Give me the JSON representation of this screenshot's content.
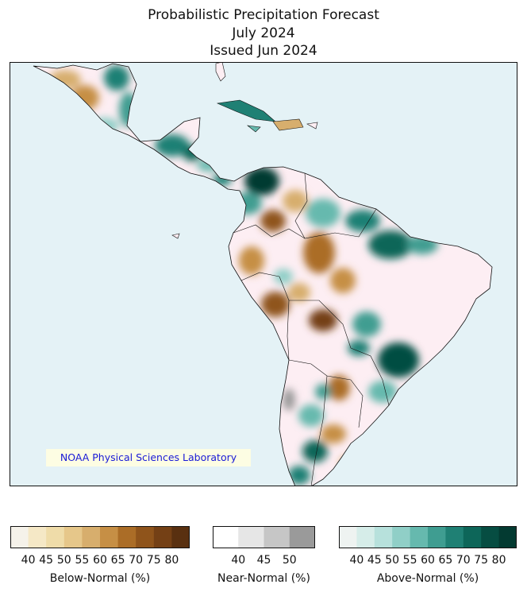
{
  "header": {
    "title": "Probabilistic Precipitation Forecast",
    "month": "July 2024",
    "issued": "Issued Jun 2024"
  },
  "credit": "NOAA Physical Sciences Laboratory",
  "colors": {
    "ocean": "#e4f2f6",
    "land_near_normal": "#fdeef3",
    "below": [
      "#f5f2ea",
      "#f5e8c6",
      "#efdca9",
      "#e6c78a",
      "#d7ae6d",
      "#c68f45",
      "#ab6d27",
      "#8f541b",
      "#744015",
      "#593010"
    ],
    "near": [
      "#ffffff",
      "#e6e6e6",
      "#c6c6c6",
      "#9a9a9a"
    ],
    "above": [
      "#eef3f1",
      "#d6ede9",
      "#b7e1dc",
      "#90cfc7",
      "#66b9ae",
      "#3f9d91",
      "#1f8074",
      "#0d6659",
      "#064d42",
      "#033a31"
    ]
  },
  "legends": {
    "below": {
      "label": "Below-Normal (%)",
      "ticks": [
        "40",
        "45",
        "50",
        "55",
        "60",
        "65",
        "70",
        "75",
        "80"
      ]
    },
    "near": {
      "label": "Near-Normal (%)",
      "ticks": [
        "40",
        "45",
        "50"
      ]
    },
    "above": {
      "label": "Above-Normal (%)",
      "ticks": [
        "40",
        "45",
        "50",
        "55",
        "60",
        "65",
        "70",
        "75",
        "80"
      ]
    }
  }
}
